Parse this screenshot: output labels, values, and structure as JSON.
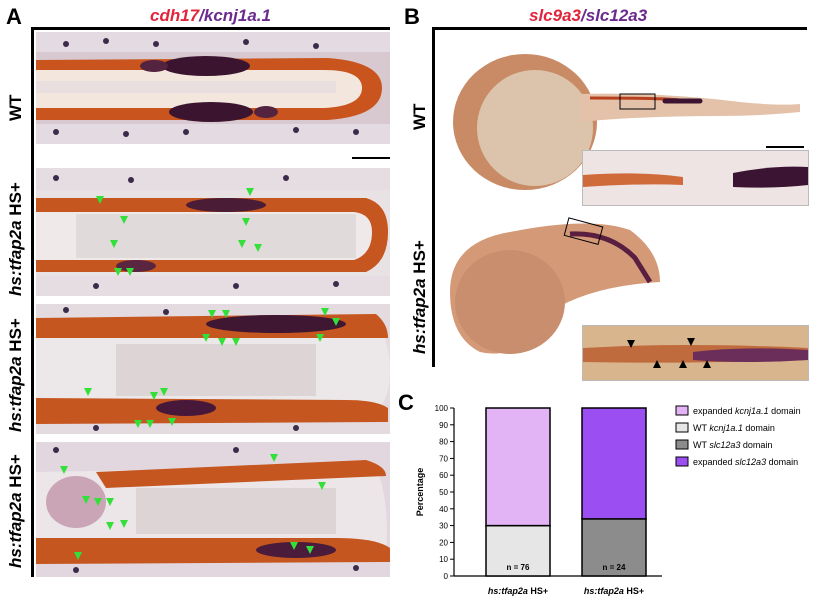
{
  "panelA": {
    "letter": "A",
    "title_gene1": "cdh17",
    "title_sep": "/",
    "title_gene2": "kcnj1a.1",
    "rows": [
      {
        "label_gene": "WT",
        "label_suffix": ""
      },
      {
        "label_gene": "hs:tfap2a",
        "label_suffix": " HS+"
      },
      {
        "label_gene": "hs:tfap2a",
        "label_suffix": " HS+"
      },
      {
        "label_gene": "hs:tfap2a",
        "label_suffix": " HS+"
      }
    ]
  },
  "panelB": {
    "letter": "B",
    "title_gene1": "slc9a3",
    "title_sep": "/",
    "title_gene2": "slc12a3",
    "rows": [
      {
        "label_gene": "WT",
        "label_suffix": ""
      },
      {
        "label_gene": "hs:tfap2a",
        "label_suffix": " HS+"
      }
    ]
  },
  "panelC": {
    "letter": "C",
    "chart_data": {
      "type": "bar",
      "stacked": true,
      "ylabel": "Percentage",
      "ylim": [
        0,
        100
      ],
      "yticks": [
        0,
        10,
        20,
        30,
        40,
        50,
        60,
        70,
        80,
        90,
        100
      ],
      "categories": [
        {
          "gene": "hs:tfap2a",
          "suffix": " HS+"
        },
        {
          "gene": "hs:tfap2a",
          "suffix": " HS+"
        }
      ],
      "bars": [
        {
          "n_label": "n = 76",
          "segments": [
            {
              "series": "WT kcnj1a.1 domain",
              "value": 30,
              "color": "#e6e6e6"
            },
            {
              "series": "expanded kcnj1a.1 domain",
              "value": 70,
              "color": "#e3b4f5"
            }
          ]
        },
        {
          "n_label": "n = 24",
          "segments": [
            {
              "series": "WT slc12a3 domain",
              "value": 34,
              "color": "#8c8c8c"
            },
            {
              "series": "expanded slc12a3 domain",
              "value": 66,
              "color": "#9b4ff2"
            }
          ]
        }
      ],
      "legend_position": "right",
      "legend": [
        {
          "pre": "expanded ",
          "gene": "kcnj1a.1",
          "post": " domain",
          "color": "#e3b4f5"
        },
        {
          "pre": "WT ",
          "gene": "kcnj1a.1",
          "post": " domain",
          "color": "#e6e6e6"
        },
        {
          "pre": "WT ",
          "gene": "slc12a3",
          "post": " domain",
          "color": "#8c8c8c"
        },
        {
          "pre": "expanded ",
          "gene": "slc12a3",
          "post": " domain",
          "color": "#9b4ff2"
        }
      ]
    }
  },
  "colors": {
    "cdh17_red": "#e3243b",
    "kcnj_purple": "#6b2b8e",
    "arrowhead_green": "#33e03a",
    "stain_orange": "#c8551b",
    "stain_dark": "#3a1633"
  }
}
